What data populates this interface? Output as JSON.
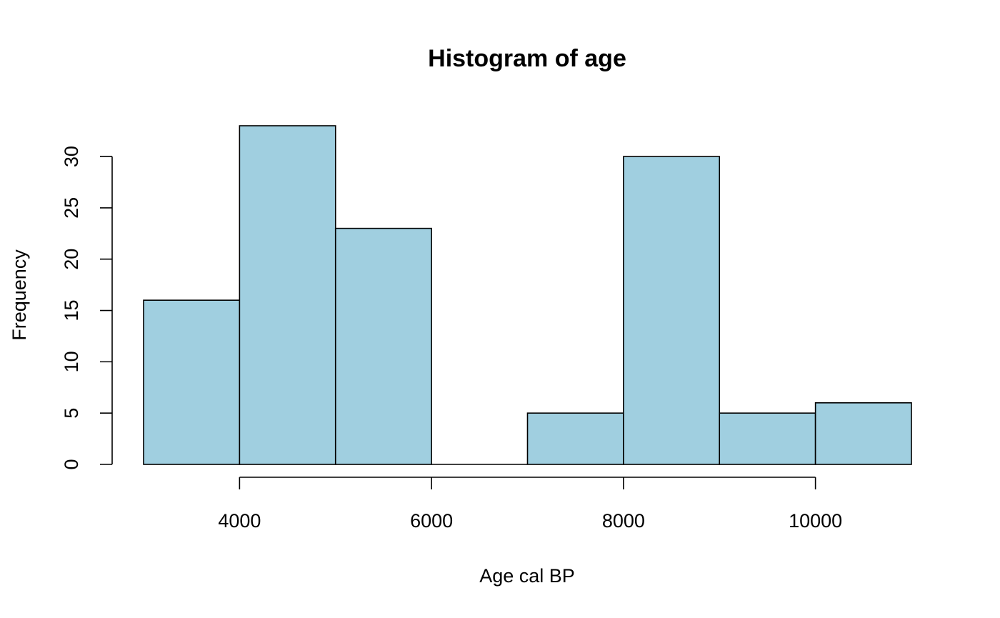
{
  "chart_data": {
    "type": "bar",
    "title": "Histogram of age",
    "xlabel": "Age cal BP",
    "ylabel": "Frequency",
    "bins": [
      {
        "x0": 3000,
        "x1": 4000,
        "count": 16
      },
      {
        "x0": 4000,
        "x1": 5000,
        "count": 33
      },
      {
        "x0": 5000,
        "x1": 6000,
        "count": 23
      },
      {
        "x0": 6000,
        "x1": 7000,
        "count": 0
      },
      {
        "x0": 7000,
        "x1": 8000,
        "count": 5
      },
      {
        "x0": 8000,
        "x1": 9000,
        "count": 30
      },
      {
        "x0": 9000,
        "x1": 10000,
        "count": 5
      },
      {
        "x0": 10000,
        "x1": 11000,
        "count": 6
      }
    ],
    "x_ticks": [
      4000,
      6000,
      8000,
      10000
    ],
    "y_ticks": [
      0,
      5,
      10,
      15,
      20,
      25,
      30
    ],
    "xlim": [
      3000,
      11000
    ],
    "ylim": [
      0,
      33
    ],
    "bar_color": "#a0cfe0",
    "grid": false,
    "legend": "none"
  }
}
